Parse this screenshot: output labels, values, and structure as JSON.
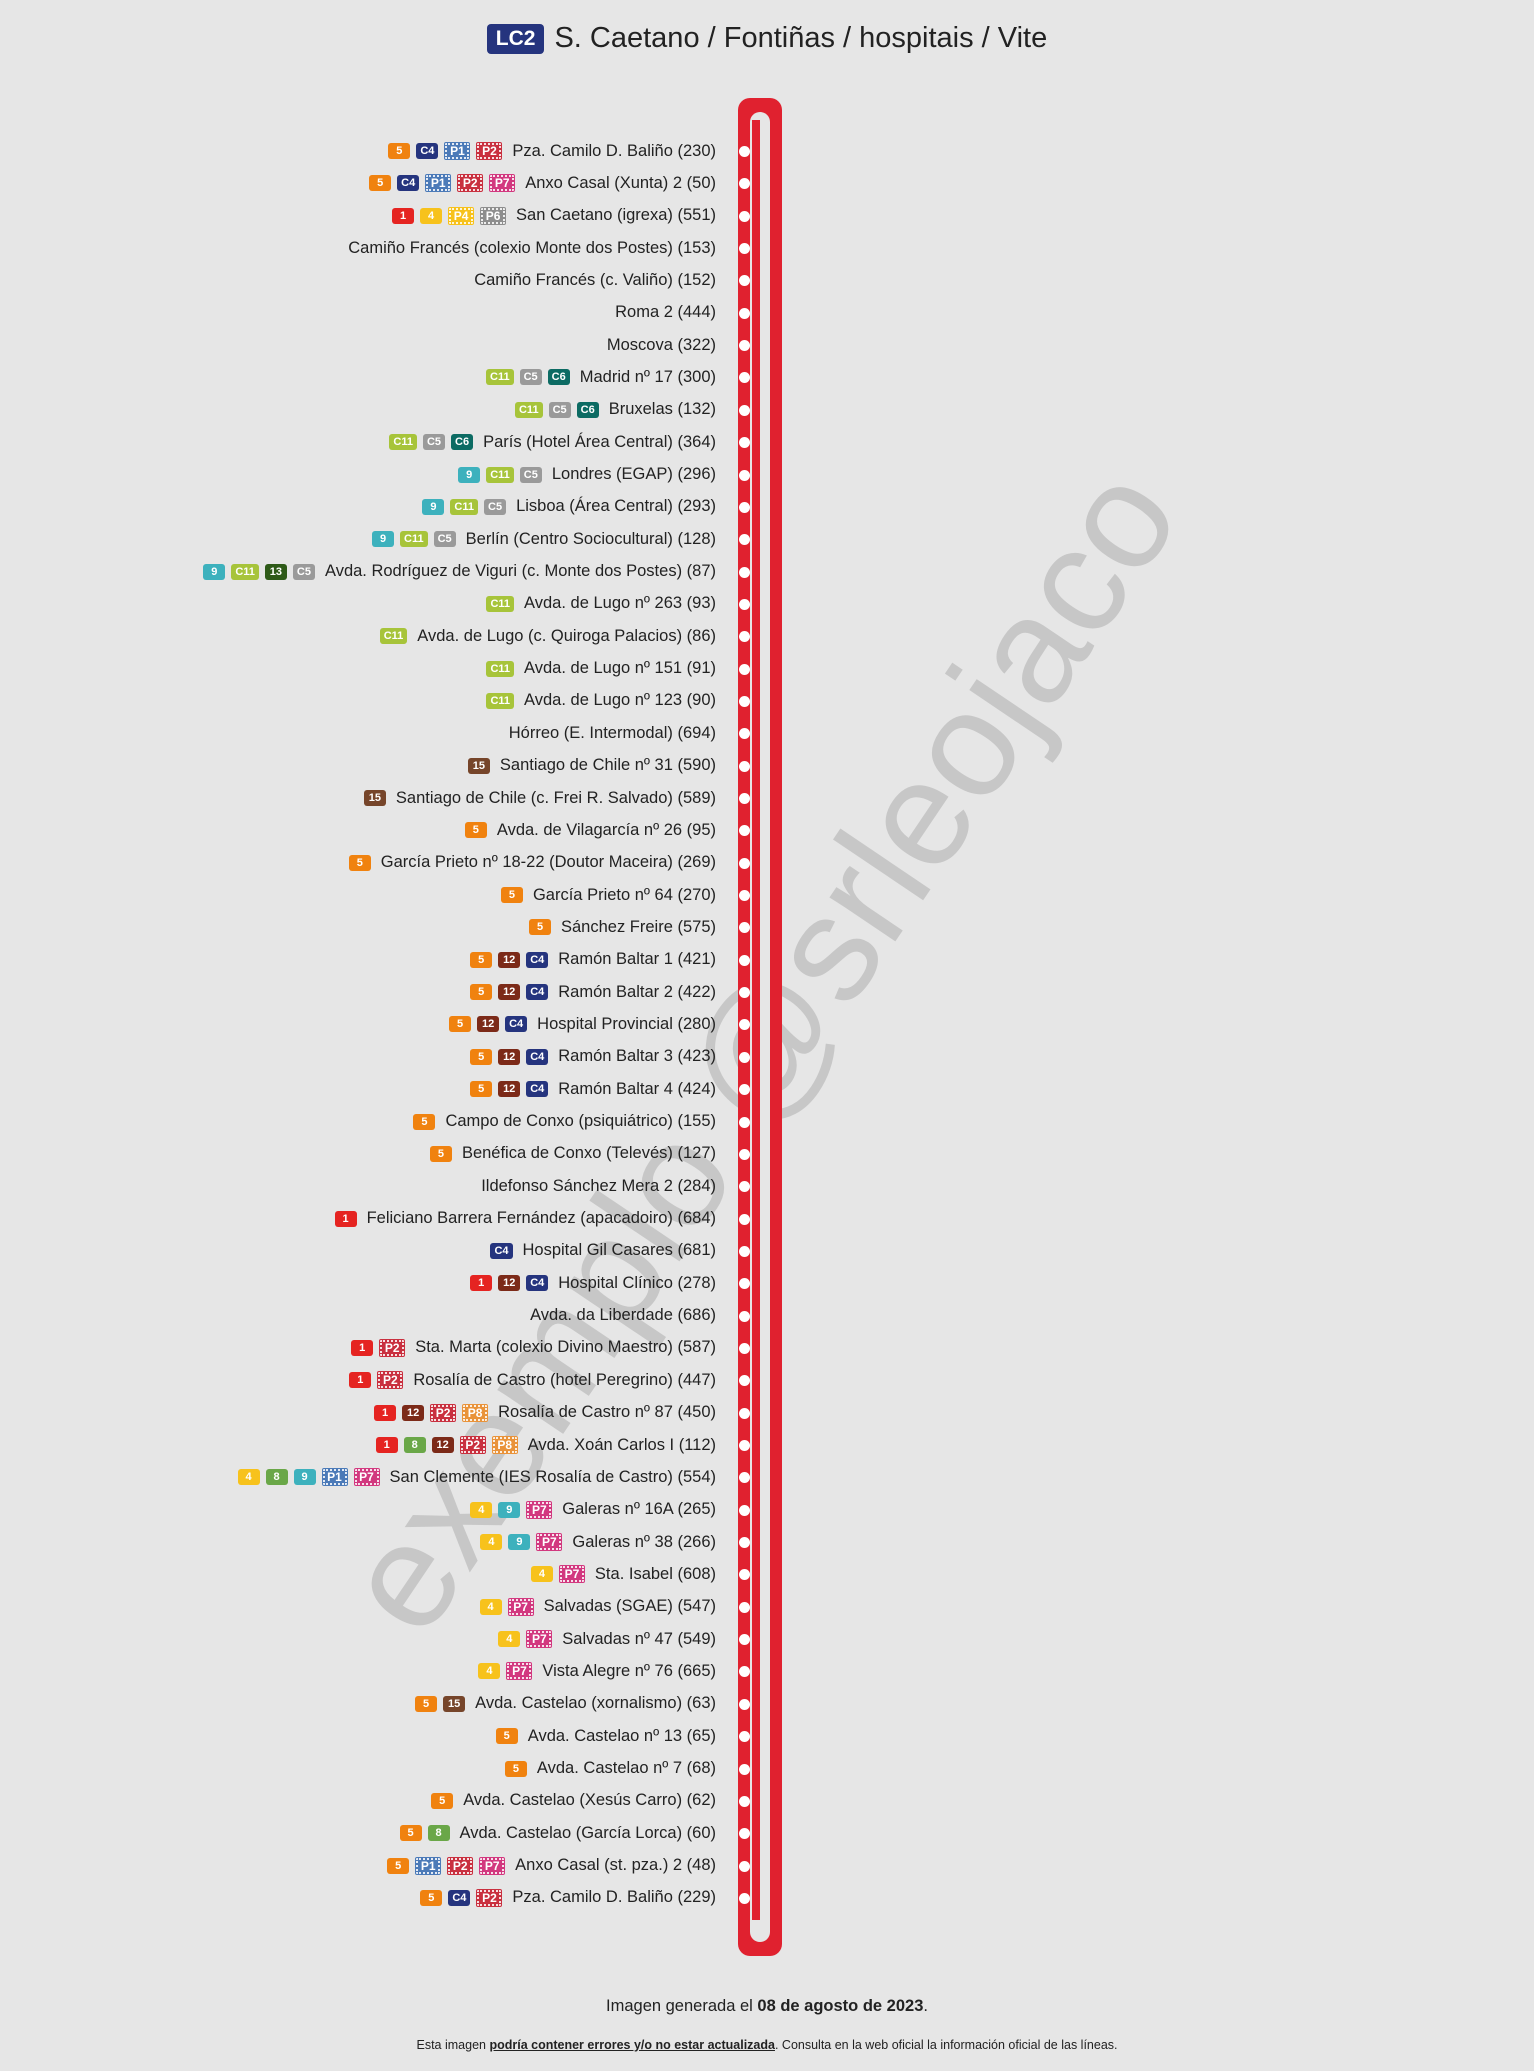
{
  "header": {
    "line_code": "LC2",
    "title": "S. Caetano / Fontiñas / hospitais / Vite"
  },
  "line_colors": {
    "1": "#e52421",
    "4": "#f7c21c",
    "5": "#f0820f",
    "8": "#6aa748",
    "9": "#3db1bd",
    "12": "#7c2a18",
    "13": "#2e5a18",
    "15": "#76452a",
    "C4": "#25347e",
    "C5": "#9a9a9a",
    "C6": "#0c6b63",
    "C11": "#a7c43a",
    "P1": "#4b7ab8",
    "P2": "#c9303f",
    "P4": "#f7c21c",
    "P6": "#8e8e8e",
    "P7": "#d2387f",
    "P8": "#e9933a",
    "track": "#e0212f"
  },
  "stops": [
    {
      "name": "Pza. Camilo D. Baliño (230)",
      "lines": [
        "5",
        "C4",
        "P1",
        "P2"
      ]
    },
    {
      "name": "Anxo Casal (Xunta) 2 (50)",
      "lines": [
        "5",
        "C4",
        "P1",
        "P2",
        "P7"
      ]
    },
    {
      "name": "San Caetano (igrexa) (551)",
      "lines": [
        "1",
        "4",
        "P4",
        "P6"
      ]
    },
    {
      "name": "Camiño Francés (colexio Monte dos Postes) (153)",
      "lines": []
    },
    {
      "name": "Camiño Francés (c. Valiño) (152)",
      "lines": []
    },
    {
      "name": "Roma 2 (444)",
      "lines": []
    },
    {
      "name": "Moscova (322)",
      "lines": []
    },
    {
      "name": "Madrid nº 17 (300)",
      "lines": [
        "C11",
        "C5",
        "C6"
      ]
    },
    {
      "name": "Bruxelas (132)",
      "lines": [
        "C11",
        "C5",
        "C6"
      ]
    },
    {
      "name": "París (Hotel Área Central) (364)",
      "lines": [
        "C11",
        "C5",
        "C6"
      ]
    },
    {
      "name": "Londres (EGAP) (296)",
      "lines": [
        "9",
        "C11",
        "C5"
      ]
    },
    {
      "name": "Lisboa (Área Central) (293)",
      "lines": [
        "9",
        "C11",
        "C5"
      ]
    },
    {
      "name": "Berlín (Centro Sociocultural) (128)",
      "lines": [
        "9",
        "C11",
        "C5"
      ]
    },
    {
      "name": "Avda. Rodríguez de Viguri (c. Monte dos Postes) (87)",
      "lines": [
        "9",
        "C11",
        "13",
        "C5"
      ]
    },
    {
      "name": "Avda. de Lugo nº 263 (93)",
      "lines": [
        "C11"
      ]
    },
    {
      "name": "Avda. de Lugo (c. Quiroga Palacios) (86)",
      "lines": [
        "C11"
      ]
    },
    {
      "name": "Avda. de Lugo nº 151 (91)",
      "lines": [
        "C11"
      ]
    },
    {
      "name": "Avda. de Lugo nº 123 (90)",
      "lines": [
        "C11"
      ]
    },
    {
      "name": "Hórreo (E. Intermodal) (694)",
      "lines": []
    },
    {
      "name": "Santiago de Chile nº 31 (590)",
      "lines": [
        "15"
      ]
    },
    {
      "name": "Santiago de Chile (c. Frei R. Salvado) (589)",
      "lines": [
        "15"
      ]
    },
    {
      "name": "Avda. de Vilagarcía nº 26 (95)",
      "lines": [
        "5"
      ]
    },
    {
      "name": "García Prieto nº 18-22 (Doutor Maceira) (269)",
      "lines": [
        "5"
      ]
    },
    {
      "name": "García Prieto nº 64 (270)",
      "lines": [
        "5"
      ]
    },
    {
      "name": "Sánchez Freire (575)",
      "lines": [
        "5"
      ]
    },
    {
      "name": "Ramón Baltar 1 (421)",
      "lines": [
        "5",
        "12",
        "C4"
      ]
    },
    {
      "name": "Ramón Baltar 2 (422)",
      "lines": [
        "5",
        "12",
        "C4"
      ]
    },
    {
      "name": "Hospital Provincial (280)",
      "lines": [
        "5",
        "12",
        "C4"
      ]
    },
    {
      "name": "Ramón Baltar 3 (423)",
      "lines": [
        "5",
        "12",
        "C4"
      ]
    },
    {
      "name": "Ramón Baltar 4 (424)",
      "lines": [
        "5",
        "12",
        "C4"
      ]
    },
    {
      "name": "Campo de Conxo (psiquiátrico) (155)",
      "lines": [
        "5"
      ]
    },
    {
      "name": "Benéfica de Conxo (Televés) (127)",
      "lines": [
        "5"
      ]
    },
    {
      "name": "Ildefonso Sánchez Mera 2 (284)",
      "lines": []
    },
    {
      "name": "Feliciano Barrera Fernández (apacadoiro) (684)",
      "lines": [
        "1"
      ]
    },
    {
      "name": "Hospital Gil Casares (681)",
      "lines": [
        "C4"
      ]
    },
    {
      "name": "Hospital Clínico (278)",
      "lines": [
        "1",
        "12",
        "C4"
      ]
    },
    {
      "name": "Avda. da Liberdade (686)",
      "lines": []
    },
    {
      "name": "Sta. Marta (colexio Divino Maestro) (587)",
      "lines": [
        "1",
        "P2"
      ]
    },
    {
      "name": "Rosalía de Castro (hotel Peregrino) (447)",
      "lines": [
        "1",
        "P2"
      ]
    },
    {
      "name": "Rosalía de Castro nº 87 (450)",
      "lines": [
        "1",
        "12",
        "P2",
        "P8"
      ]
    },
    {
      "name": "Avda. Xoán Carlos I (112)",
      "lines": [
        "1",
        "8",
        "12",
        "P2",
        "P8"
      ]
    },
    {
      "name": "San Clemente (IES Rosalía de Castro) (554)",
      "lines": [
        "4",
        "8",
        "9",
        "P1",
        "P7"
      ]
    },
    {
      "name": "Galeras nº 16A (265)",
      "lines": [
        "4",
        "9",
        "P7"
      ]
    },
    {
      "name": "Galeras nº 38 (266)",
      "lines": [
        "4",
        "9",
        "P7"
      ]
    },
    {
      "name": "Sta. Isabel (608)",
      "lines": [
        "4",
        "P7"
      ]
    },
    {
      "name": "Salvadas (SGAE) (547)",
      "lines": [
        "4",
        "P7"
      ]
    },
    {
      "name": "Salvadas nº 47 (549)",
      "lines": [
        "4",
        "P7"
      ]
    },
    {
      "name": "Vista Alegre nº 76 (665)",
      "lines": [
        "4",
        "P7"
      ]
    },
    {
      "name": "Avda. Castelao (xornalismo) (63)",
      "lines": [
        "5",
        "15"
      ]
    },
    {
      "name": "Avda. Castelao nº 13 (65)",
      "lines": [
        "5"
      ]
    },
    {
      "name": "Avda. Castelao nº 7 (68)",
      "lines": [
        "5"
      ]
    },
    {
      "name": "Avda. Castelao (Xesús Carro) (62)",
      "lines": [
        "5"
      ]
    },
    {
      "name": "Avda. Castelao (García Lorca) (60)",
      "lines": [
        "5",
        "8"
      ]
    },
    {
      "name": "Anxo Casal (st. pza.) 2 (48)",
      "lines": [
        "5",
        "P1",
        "P2",
        "P7"
      ]
    },
    {
      "name": "Pza. Camilo D. Baliño (229)",
      "lines": [
        "5",
        "C4",
        "P2"
      ]
    }
  ],
  "watermark": "exemplo @srleojaco",
  "footer": {
    "generated_prefix": "Imagen generada el ",
    "generated_date": "08 de agosto de 2023",
    "generated_suffix": ".",
    "note_prefix": "Esta imagen ",
    "note_emphasis": "podría contener errores y/o no estar actualizada",
    "note_suffix": ". Consulta en la web oficial la información oficial de las líneas."
  }
}
